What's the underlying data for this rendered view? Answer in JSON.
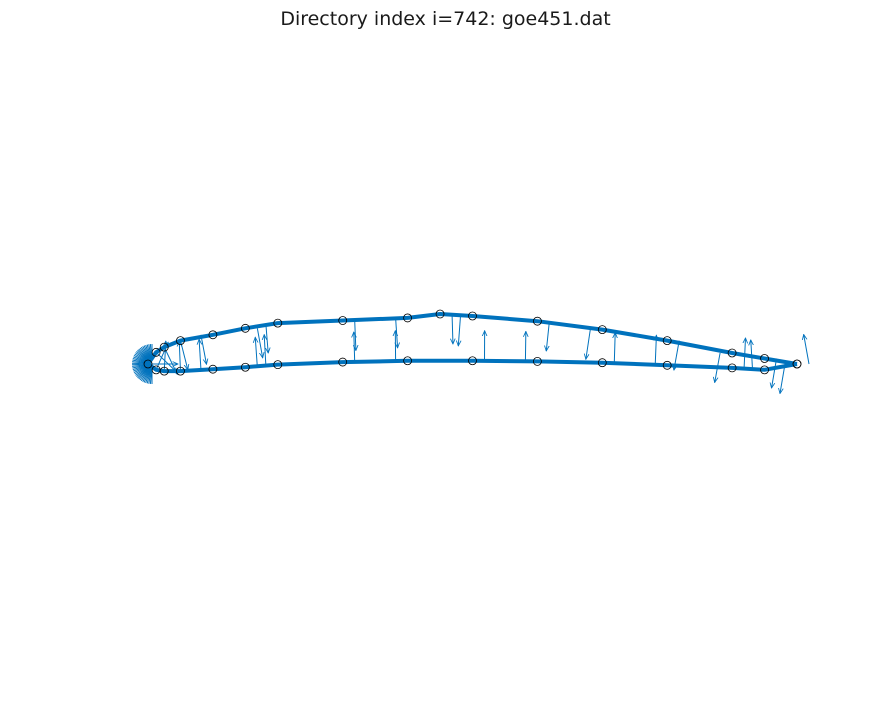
{
  "chart_data": {
    "type": "line",
    "title": "Directory index i=742: goe451.dat",
    "xlabel": "",
    "ylabel": "",
    "axes_visible": false,
    "grid": false,
    "aspect": "equal",
    "colors": {
      "line": "#0072bd",
      "markers": "#000000"
    },
    "series": [
      {
        "name": "",
        "x": [
          1.0,
          0.95,
          0.9,
          0.8,
          0.7,
          0.6,
          0.5,
          0.45,
          0.4,
          0.3,
          0.2,
          0.15,
          0.1,
          0.05,
          0.025,
          0.0125,
          0.0,
          0.0125,
          0.025,
          0.05,
          0.1,
          0.15,
          0.2,
          0.3,
          0.4,
          0.5,
          0.6,
          0.7,
          0.8,
          0.9,
          0.95,
          1.0
        ],
        "y": [
          0.0,
          0.0085,
          0.017,
          0.036,
          0.053,
          0.066,
          0.074,
          0.077,
          0.071,
          0.067,
          0.063,
          0.055,
          0.045,
          0.036,
          0.026,
          0.018,
          0.0,
          -0.009,
          -0.011,
          -0.011,
          -0.008,
          -0.005,
          -0.001,
          0.003,
          0.005,
          0.005,
          0.004,
          0.002,
          -0.002,
          -0.006,
          -0.009,
          0.0
        ]
      }
    ],
    "normals": {
      "description": "normal vectors drawn along the contour (quiver)"
    }
  }
}
